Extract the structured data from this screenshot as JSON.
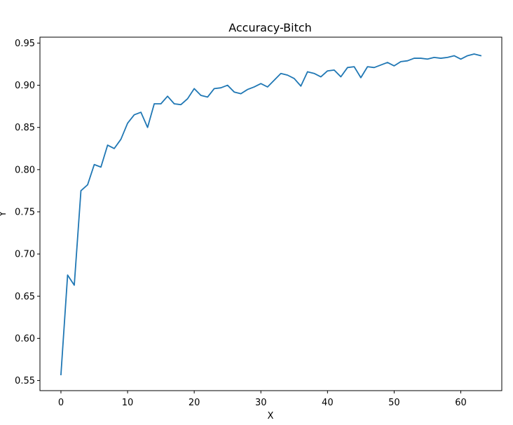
{
  "chart_data": {
    "type": "line",
    "title": "Accuracy-Bitch",
    "xlabel": "X",
    "ylabel": "Y",
    "xlim": [
      -3.15,
      66.15
    ],
    "ylim": [
      0.538,
      0.957
    ],
    "x_ticks": [
      0,
      10,
      20,
      30,
      40,
      50,
      60
    ],
    "y_ticks": [
      0.55,
      0.6,
      0.65,
      0.7,
      0.75,
      0.8,
      0.85,
      0.9,
      0.95
    ],
    "grid": false,
    "series": [
      {
        "color": "#1f77b4",
        "x": [
          0,
          1,
          2,
          3,
          4,
          5,
          6,
          7,
          8,
          9,
          10,
          11,
          12,
          13,
          14,
          15,
          16,
          17,
          18,
          19,
          20,
          21,
          22,
          23,
          24,
          25,
          26,
          27,
          28,
          29,
          30,
          31,
          32,
          33,
          34,
          35,
          36,
          37,
          38,
          39,
          40,
          41,
          42,
          43,
          44,
          45,
          46,
          47,
          48,
          49,
          50,
          51,
          52,
          53,
          54,
          55,
          56,
          57,
          58,
          59,
          60,
          61,
          62,
          63
        ],
        "values": [
          0.557,
          0.675,
          0.663,
          0.775,
          0.782,
          0.806,
          0.803,
          0.829,
          0.825,
          0.836,
          0.855,
          0.865,
          0.868,
          0.85,
          0.878,
          0.878,
          0.887,
          0.878,
          0.877,
          0.884,
          0.896,
          0.888,
          0.886,
          0.896,
          0.897,
          0.9,
          0.892,
          0.89,
          0.895,
          0.898,
          0.902,
          0.898,
          0.906,
          0.914,
          0.912,
          0.908,
          0.899,
          0.916,
          0.914,
          0.91,
          0.917,
          0.918,
          0.91,
          0.921,
          0.922,
          0.909,
          0.922,
          0.921,
          0.924,
          0.927,
          0.923,
          0.928,
          0.929,
          0.932,
          0.932,
          0.931,
          0.933,
          0.932,
          0.933,
          0.935,
          0.931,
          0.935,
          0.937,
          0.935
        ]
      }
    ]
  }
}
